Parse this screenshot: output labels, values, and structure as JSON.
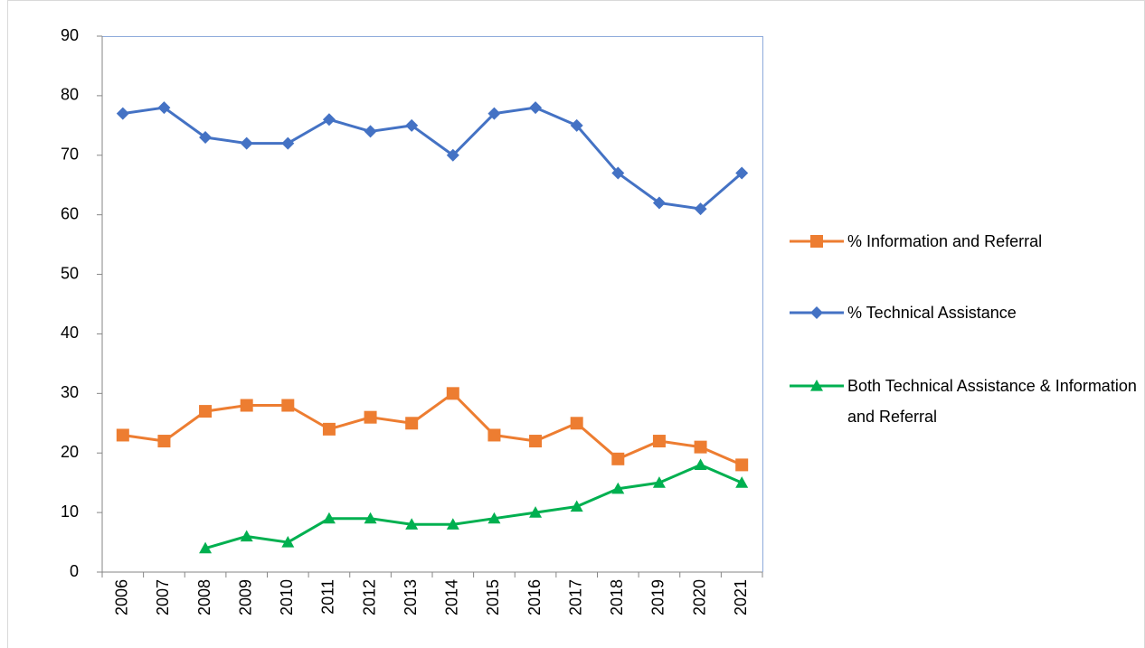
{
  "chart_data": {
    "type": "line",
    "categories": [
      "2006",
      "2007",
      "2008",
      "2009",
      "2010",
      "2011",
      "2012",
      "2013",
      "2014",
      "2015",
      "2016",
      "2017",
      "2018",
      "2019",
      "2020",
      "2021"
    ],
    "series": [
      {
        "name": "% Information and Referral",
        "color": "#ED7D31",
        "marker": "square",
        "values": [
          23,
          22,
          27,
          28,
          28,
          24,
          26,
          25,
          30,
          23,
          22,
          25,
          19,
          22,
          21,
          18
        ]
      },
      {
        "name": "% Technical Assistance",
        "color": "#4472C4",
        "marker": "diamond",
        "values": [
          77,
          78,
          73,
          72,
          72,
          76,
          74,
          75,
          70,
          77,
          78,
          75,
          67,
          62,
          61,
          67
        ]
      },
      {
        "name": "Both Technical Assistance & Information and Referral",
        "color": "#00B050",
        "marker": "triangle",
        "values": [
          null,
          null,
          4,
          6,
          5,
          9,
          9,
          8,
          8,
          9,
          10,
          11,
          14,
          15,
          18,
          15
        ]
      }
    ],
    "ylim": [
      0,
      90
    ],
    "yticks": [
      0,
      10,
      20,
      30,
      40,
      50,
      60,
      70,
      80,
      90
    ],
    "grid": false,
    "legend": "right"
  }
}
